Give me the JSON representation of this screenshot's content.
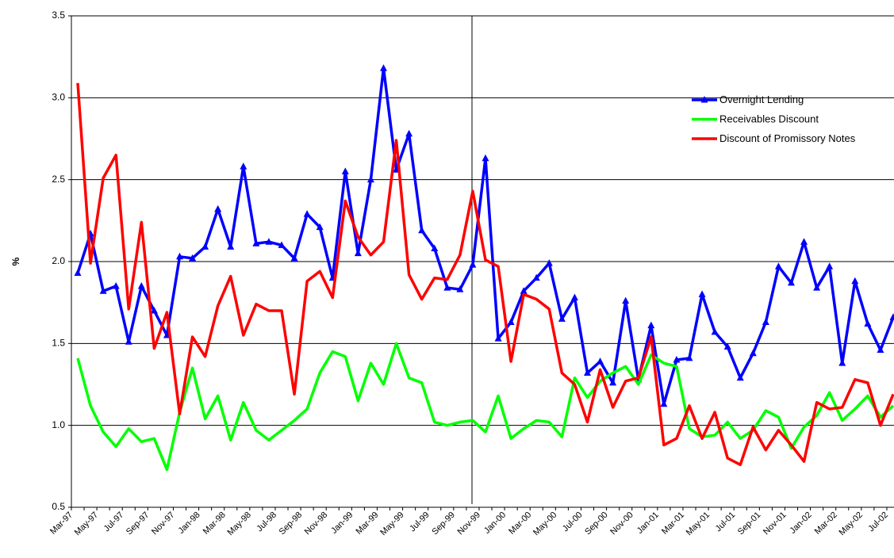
{
  "chart_data": {
    "type": "line",
    "y_label": "%",
    "categories": [
      "Mar-97",
      null,
      "May-97",
      null,
      "Jul-97",
      null,
      "Sep-97",
      null,
      "Nov-97",
      null,
      "Jan-98",
      null,
      "Mar-98",
      null,
      "May-98",
      null,
      "Jul-98",
      null,
      "Sep-98",
      null,
      "Nov-98",
      null,
      "Jan-99",
      null,
      "Mar-99",
      null,
      "May-99",
      null,
      "Jul-99",
      null,
      "Sep-99",
      null,
      "Nov-99",
      null,
      "Jan-00",
      null,
      "Mar-00",
      null,
      "May-00",
      null,
      "Jul-00",
      null,
      "Sep-00",
      null,
      "Nov-00",
      null,
      "Jan-01",
      null,
      "Mar-01",
      null,
      "May-01",
      null,
      "Jul-01",
      null,
      "Sep-01",
      null,
      "Nov-01",
      null,
      "Jan-02",
      null,
      "Mar-02",
      null,
      "May-02",
      null,
      "Jul-02"
    ],
    "series": [
      {
        "name": "Overnight Lending",
        "color": "#0000ff",
        "marker": "triangle",
        "values": [
          1.93,
          2.17,
          1.82,
          1.85,
          1.51,
          1.85,
          1.7,
          1.55,
          2.03,
          2.02,
          2.09,
          2.32,
          2.09,
          2.58,
          2.11,
          2.12,
          2.1,
          2.02,
          2.29,
          2.21,
          1.9,
          2.55,
          2.05,
          2.5,
          3.18,
          2.56,
          2.78,
          2.19,
          2.08,
          1.84,
          1.83,
          1.98,
          2.63,
          1.53,
          1.63,
          1.82,
          1.9,
          1.99,
          1.65,
          1.78,
          1.32,
          1.39,
          1.26,
          1.76,
          1.28,
          1.61,
          1.13,
          1.4,
          1.41,
          1.8,
          1.57,
          1.48,
          1.29,
          1.44,
          1.63,
          1.97,
          1.87,
          2.12,
          1.84,
          1.97,
          1.38,
          1.88,
          1.62,
          1.46,
          1.66
        ]
      },
      {
        "name": "Receivables Discount",
        "color": "#00ff00",
        "values": [
          1.41,
          1.12,
          0.96,
          0.87,
          0.98,
          0.9,
          0.92,
          0.73,
          1.08,
          1.35,
          1.04,
          1.18,
          0.91,
          1.14,
          0.97,
          0.91,
          0.97,
          1.03,
          1.1,
          1.32,
          1.45,
          1.42,
          1.15,
          1.38,
          1.25,
          1.5,
          1.29,
          1.26,
          1.02,
          1.0,
          1.02,
          1.03,
          0.96,
          1.18,
          0.92,
          0.98,
          1.03,
          1.02,
          0.93,
          1.29,
          1.17,
          1.27,
          1.32,
          1.36,
          1.25,
          1.43,
          1.38,
          1.36,
          0.98,
          0.93,
          0.94,
          1.02,
          0.92,
          0.97,
          1.09,
          1.05,
          0.86,
          0.99,
          1.06,
          1.2,
          1.03,
          1.1,
          1.18,
          1.05,
          1.12
        ]
      },
      {
        "name": "Discount of Promissory Notes",
        "color": "#ff0000",
        "values": [
          3.09,
          1.99,
          2.51,
          2.65,
          1.71,
          2.24,
          1.47,
          1.69,
          1.07,
          1.54,
          1.42,
          1.73,
          1.91,
          1.55,
          1.74,
          1.7,
          1.7,
          1.19,
          1.88,
          1.94,
          1.78,
          2.37,
          2.15,
          2.04,
          2.12,
          2.74,
          1.92,
          1.77,
          1.9,
          1.89,
          2.04,
          2.43,
          2.01,
          1.97,
          1.39,
          1.8,
          1.77,
          1.71,
          1.32,
          1.25,
          1.02,
          1.34,
          1.11,
          1.27,
          1.29,
          1.54,
          0.88,
          0.92,
          1.12,
          0.92,
          1.08,
          0.8,
          0.76,
          0.99,
          0.85,
          0.97,
          0.88,
          0.78,
          1.14,
          1.1,
          1.11,
          1.28,
          1.26,
          1.0,
          1.19
        ]
      }
    ],
    "ylim": [
      0.5,
      3.5
    ],
    "yticks": [
      0.5,
      {
        "value": 1.0,
        "label": "1.0"
      },
      1.5,
      {
        "value": 2.0,
        "label": "2.0"
      },
      2.5,
      {
        "value": 3.0,
        "label": "3.0"
      },
      3.5
    ],
    "grid": true,
    "legend": "top-right"
  }
}
